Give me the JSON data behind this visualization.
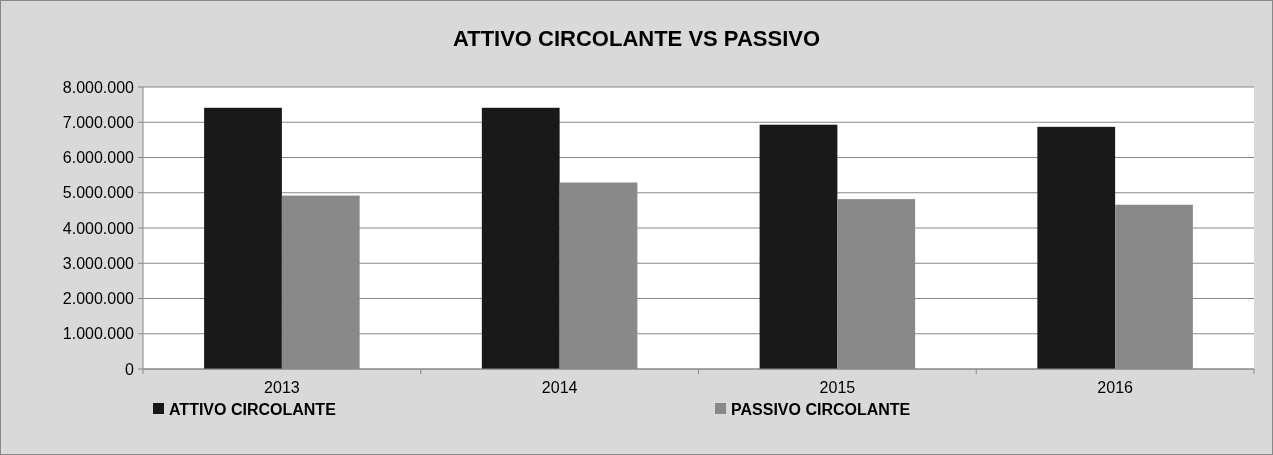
{
  "chart_data": {
    "type": "bar",
    "title": "ATTIVO CIRCOLANTE VS PASSIVO",
    "categories": [
      "2013",
      "2014",
      "2015",
      "2016"
    ],
    "series": [
      {
        "name": "ATTIVO CIRCOLANTE",
        "color": "#191919",
        "values": [
          7410000,
          7410000,
          6930000,
          6870000
        ]
      },
      {
        "name": "PASSIVO CIRCOLANTE",
        "color": "#898989",
        "values": [
          4920000,
          5290000,
          4820000,
          4660000
        ]
      }
    ],
    "ylim": [
      0,
      8000000
    ],
    "yticks": [
      {
        "value": 0,
        "label": "0"
      },
      {
        "value": 1000000,
        "label": "1.000.000"
      },
      {
        "value": 2000000,
        "label": "2.000.000"
      },
      {
        "value": 3000000,
        "label": "3.000.000"
      },
      {
        "value": 4000000,
        "label": "4.000.000"
      },
      {
        "value": 5000000,
        "label": "5.000.000"
      },
      {
        "value": 6000000,
        "label": "6.000.000"
      },
      {
        "value": 7000000,
        "label": "7.000.000"
      },
      {
        "value": 8000000,
        "label": "8.000.000"
      }
    ],
    "grid": "y",
    "legend": "bottom"
  }
}
